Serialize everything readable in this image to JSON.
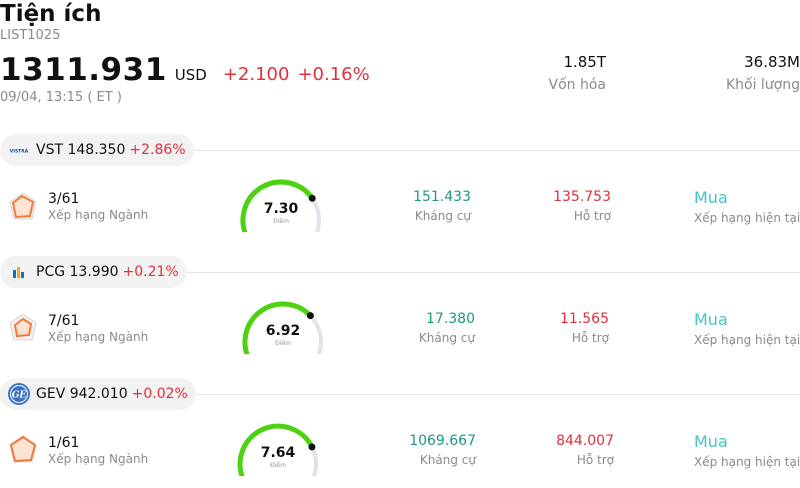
{
  "header": {
    "title": "Tiện ích",
    "list_code": "LIST1025",
    "price": "1311.931",
    "currency": "USD",
    "change": "+2.100",
    "change_pct": "+0.16%",
    "datetime": "09/04, 13:15  ( ET )",
    "market_cap_value": "1.85T",
    "market_cap_label": "Vốn hóa",
    "volume_value": "36.83M",
    "volume_label": "Khối lượng"
  },
  "colors": {
    "negative": "#e0303d",
    "resistance": "#1a9a7e",
    "rating": "#3fc7c0",
    "gauge_fill": "#4cd20e",
    "gauge_track": "#e2e2e8"
  },
  "stocks": [
    {
      "ticker_price": "VST 148.350",
      "change_pct": "+2.86%",
      "logo_icon": "vistra-logo-icon",
      "logo_text": "VISTRA",
      "rank": "3/61",
      "rank_label": "Xếp hạng Ngành",
      "score": "7.30",
      "score_value": 7.3,
      "score_label": "Điểm",
      "resistance": "151.433",
      "resistance_label": "Kháng cự",
      "support": "135.753",
      "support_label": "Hỗ trợ",
      "rating": "Mua",
      "rating_label": "Xếp hạng hiện tại"
    },
    {
      "ticker_price": "PCG 13.990",
      "change_pct": "+0.21%",
      "logo_icon": "pge-logo-icon",
      "logo_text": "",
      "rank": "7/61",
      "rank_label": "Xếp hạng Ngành",
      "score": "6.92",
      "score_value": 6.92,
      "score_label": "Điểm",
      "resistance": "17.380",
      "resistance_label": "Kháng cự",
      "support": "11.565",
      "support_label": "Hỗ trợ",
      "rating": "Mua",
      "rating_label": "Xếp hạng hiện tại"
    },
    {
      "ticker_price": "GEV 942.010",
      "change_pct": "+0.02%",
      "logo_icon": "ge-logo-icon",
      "logo_text": "GE",
      "rank": "1/61",
      "rank_label": "Xếp hạng Ngành",
      "score": "7.64",
      "score_value": 7.64,
      "score_label": "Điểm",
      "resistance": "1069.667",
      "resistance_label": "Kháng cự",
      "support": "844.007",
      "support_label": "Hỗ trợ",
      "rating": "Mua",
      "rating_label": "Xếp hạng hiện tại"
    }
  ]
}
